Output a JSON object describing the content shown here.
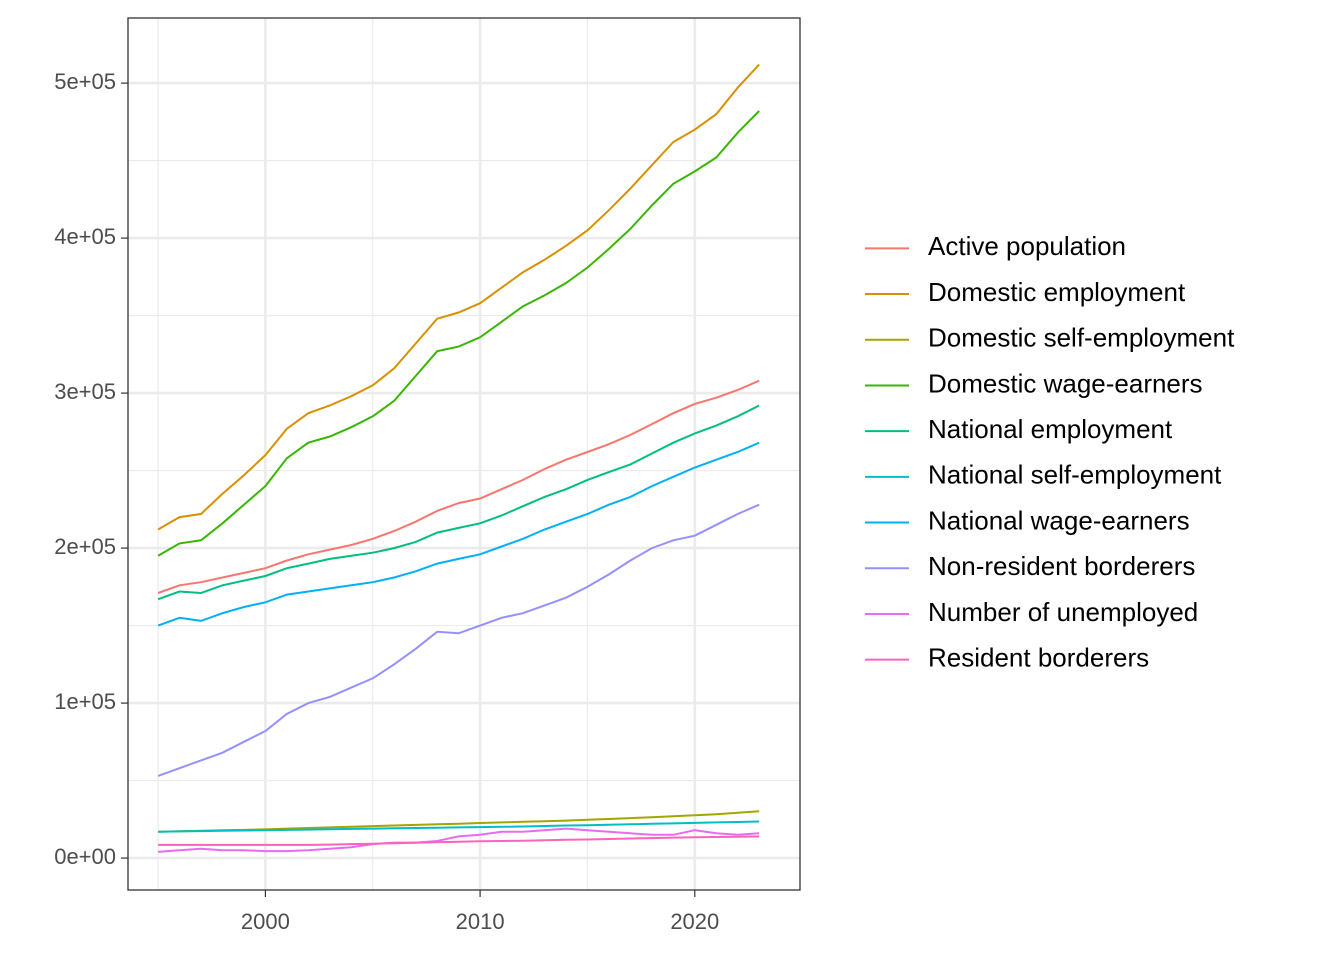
{
  "chart_data": {
    "type": "line",
    "x": [
      1995,
      1996,
      1997,
      1998,
      1999,
      2000,
      2001,
      2002,
      2003,
      2004,
      2005,
      2006,
      2007,
      2008,
      2009,
      2010,
      2011,
      2012,
      2013,
      2014,
      2015,
      2016,
      2017,
      2018,
      2019,
      2020,
      2021,
      2022,
      2023
    ],
    "series": [
      {
        "name": "Active population",
        "color": "#F8766D",
        "values": [
          171000,
          176000,
          178000,
          181000,
          184000,
          187000,
          192000,
          196000,
          199000,
          202000,
          206000,
          211000,
          217000,
          224000,
          229000,
          232000,
          238000,
          244000,
          251000,
          257000,
          262000,
          267000,
          273000,
          280000,
          287000,
          293000,
          297000,
          302000,
          308000
        ]
      },
      {
        "name": "Domestic employment",
        "color": "#D89000",
        "values": [
          212000,
          220000,
          222000,
          235000,
          247000,
          260000,
          277000,
          287000,
          292000,
          298000,
          305000,
          316000,
          332000,
          348000,
          352000,
          358000,
          368000,
          378000,
          386000,
          395000,
          405000,
          418000,
          432000,
          447000,
          462000,
          470000,
          480000,
          497000,
          512000
        ]
      },
      {
        "name": "Domestic self-employment",
        "color": "#A3A500",
        "values": [
          17000,
          17300,
          17600,
          17900,
          18200,
          18500,
          19000,
          19400,
          19800,
          20200,
          20600,
          21000,
          21400,
          21800,
          22200,
          22600,
          23000,
          23400,
          23800,
          24200,
          24700,
          25200,
          25800,
          26400,
          27000,
          27600,
          28300,
          29200,
          30200
        ]
      },
      {
        "name": "Domestic wage-earners",
        "color": "#39B600",
        "values": [
          195000,
          203000,
          205000,
          216000,
          228000,
          240000,
          258000,
          268000,
          272000,
          278000,
          285000,
          295000,
          311000,
          327000,
          330000,
          336000,
          346000,
          356000,
          363000,
          371000,
          381000,
          393000,
          406000,
          421000,
          435000,
          443000,
          452000,
          468000,
          482000
        ]
      },
      {
        "name": "National employment",
        "color": "#00BF7D",
        "values": [
          167000,
          172000,
          171000,
          176000,
          179000,
          182000,
          187000,
          190000,
          193000,
          195000,
          197000,
          200000,
          204000,
          210000,
          213000,
          216000,
          221000,
          227000,
          233000,
          238000,
          244000,
          249000,
          254000,
          261000,
          268000,
          274000,
          279000,
          285000,
          292000
        ]
      },
      {
        "name": "National self-employment",
        "color": "#00BFC4",
        "values": [
          17000,
          17200,
          17400,
          17600,
          17800,
          18000,
          18200,
          18400,
          18600,
          18800,
          19000,
          19200,
          19400,
          19600,
          19800,
          20000,
          20200,
          20400,
          20700,
          21000,
          21200,
          21500,
          21800,
          22100,
          22400,
          22700,
          23000,
          23300,
          23600
        ]
      },
      {
        "name": "National wage-earners",
        "color": "#00B0F6",
        "values": [
          150000,
          155000,
          153000,
          158000,
          162000,
          165000,
          170000,
          172000,
          174000,
          176000,
          178000,
          181000,
          185000,
          190000,
          193000,
          196000,
          201000,
          206000,
          212000,
          217000,
          222000,
          228000,
          233000,
          240000,
          246000,
          252000,
          257000,
          262000,
          268000
        ]
      },
      {
        "name": "Non-resident borderers",
        "color": "#9590FF",
        "values": [
          53000,
          58000,
          63000,
          68000,
          75000,
          82000,
          93000,
          100000,
          104000,
          110000,
          116000,
          125000,
          135000,
          146000,
          145000,
          150000,
          155000,
          158000,
          163000,
          168000,
          175000,
          183000,
          192000,
          200000,
          205000,
          208000,
          215000,
          222000,
          228000
        ]
      },
      {
        "name": "Number of unemployed",
        "color": "#E76BF3",
        "values": [
          4000,
          5000,
          6000,
          5000,
          5000,
          4500,
          4500,
          5000,
          6000,
          7000,
          9000,
          10000,
          10000,
          11000,
          14000,
          15000,
          17000,
          17000,
          18000,
          19000,
          18000,
          17000,
          16000,
          15000,
          15000,
          18000,
          16000,
          15000,
          16000
        ]
      },
      {
        "name": "Resident borderers",
        "color": "#FF62BC",
        "values": [
          8500,
          8500,
          8500,
          8500,
          8500,
          8500,
          8500,
          8500,
          8700,
          9000,
          9300,
          9600,
          9900,
          10200,
          10500,
          10800,
          11000,
          11200,
          11500,
          11800,
          12000,
          12300,
          12600,
          12900,
          13200,
          13400,
          13600,
          13800,
          14000
        ]
      }
    ],
    "xlim": [
      1993.6,
      2024.9
    ],
    "xticks": [
      2000,
      2010,
      2020
    ],
    "xminor": [
      1995,
      2005,
      2015
    ],
    "ylim": [
      -20600,
      542000
    ],
    "yticks": [
      {
        "value": 0,
        "label": "0e+00"
      },
      {
        "value": 100000,
        "label": "1e+05"
      },
      {
        "value": 200000,
        "label": "2e+05"
      },
      {
        "value": 300000,
        "label": "3e+05"
      },
      {
        "value": 400000,
        "label": "4e+05"
      },
      {
        "value": 500000,
        "label": "5e+05"
      }
    ],
    "yminor": [
      50000,
      150000,
      250000,
      350000,
      450000
    ],
    "grid": true,
    "legend": "right"
  }
}
